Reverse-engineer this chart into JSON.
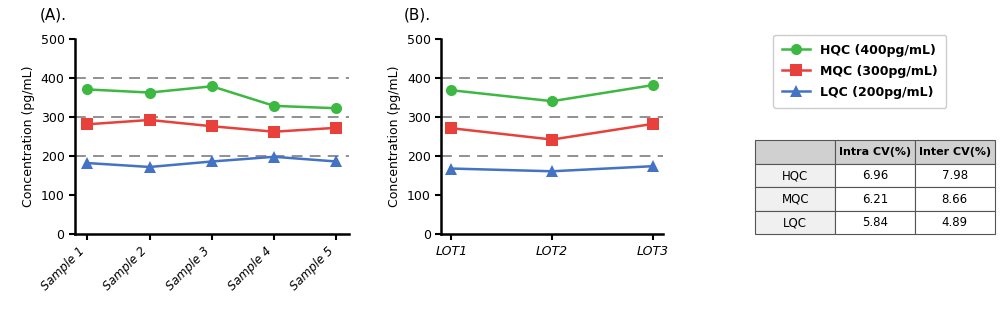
{
  "panel_A": {
    "title": "(A).",
    "xlabel_labels": [
      "Sample 1",
      "Sample 2",
      "Sample 3",
      "Sample 4",
      "Sample 5"
    ],
    "ylabel": "Concentration (pg/mL)",
    "ylim": [
      0,
      500
    ],
    "yticks": [
      0,
      100,
      200,
      300,
      400,
      500
    ],
    "hlines": [
      200,
      300,
      400
    ],
    "HQC": [
      370,
      362,
      378,
      328,
      322
    ],
    "MQC": [
      281,
      292,
      276,
      262,
      272
    ],
    "LQC": [
      182,
      172,
      186,
      198,
      186
    ]
  },
  "panel_B": {
    "title": "(B).",
    "xlabel_labels": [
      "LOT1",
      "LOT2",
      "LOT3"
    ],
    "ylabel": "Concentration (pg/mL)",
    "ylim": [
      0,
      500
    ],
    "yticks": [
      0,
      100,
      200,
      300,
      400,
      500
    ],
    "hlines": [
      200,
      300,
      400
    ],
    "HQC": [
      368,
      340,
      381
    ],
    "MQC": [
      271,
      242,
      282
    ],
    "LQC": [
      168,
      161,
      174
    ]
  },
  "legend": {
    "HQC_label": "HQC (400pg/mL)",
    "MQC_label": "MQC (300pg/mL)",
    "LQC_label": "LQC (200pg/mL)"
  },
  "table": {
    "col_labels": [
      "",
      "Intra CV(%)",
      "Inter CV(%)"
    ],
    "rows": [
      [
        "HQC",
        "6.96",
        "7.98"
      ],
      [
        "MQC",
        "6.21",
        "8.66"
      ],
      [
        "LQC",
        "5.84",
        "4.89"
      ]
    ]
  },
  "colors": {
    "HQC": "#3cb843",
    "MQC": "#e8403a",
    "LQC": "#4472c4",
    "hline": "#888888",
    "bg": "#ffffff"
  }
}
